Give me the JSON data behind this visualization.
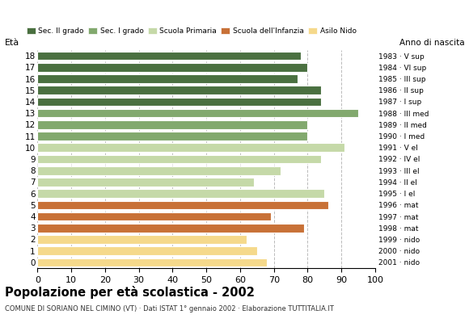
{
  "title": "Popolazione per età scolastica - 2002",
  "subtitle": "COMUNE DI SORIANO NEL CIMINO (VT) · Dati ISTAT 1° gennaio 2002 · Elaborazione TUTTITALIA.IT",
  "ylabel_left": "Età",
  "ylabel_right": "Anno di nascita",
  "ages": [
    0,
    1,
    2,
    3,
    4,
    5,
    6,
    7,
    8,
    9,
    10,
    11,
    12,
    13,
    14,
    15,
    16,
    17,
    18
  ],
  "values": [
    68,
    65,
    62,
    79,
    69,
    86,
    85,
    64,
    72,
    84,
    91,
    80,
    80,
    95,
    84,
    84,
    77,
    80,
    78
  ],
  "anni_nascita": [
    "2001 · nido",
    "2000 · nido",
    "1999 · nido",
    "1998 · mat",
    "1997 · mat",
    "1996 · mat",
    "1995 · I el",
    "1994 · II el",
    "1993 · III el",
    "1992 · IV el",
    "1991 · V el",
    "1990 · I med",
    "1989 · II med",
    "1988 · III med",
    "1987 · I sup",
    "1986 · II sup",
    "1985 · III sup",
    "1984 · VI sup",
    "1983 · V sup"
  ],
  "bar_colors_by_age": {
    "18": "#4a7040",
    "17": "#4a7040",
    "16": "#4a7040",
    "15": "#4a7040",
    "14": "#4a7040",
    "13": "#82a96e",
    "12": "#82a96e",
    "11": "#82a96e",
    "10": "#c5d9a8",
    "9": "#c5d9a8",
    "8": "#c5d9a8",
    "7": "#c5d9a8",
    "6": "#c5d9a8",
    "5": "#c87137",
    "4": "#c87137",
    "3": "#c87137",
    "2": "#f5d98b",
    "1": "#f5d98b",
    "0": "#f5d98b"
  },
  "xlim": [
    0,
    100
  ],
  "xticks": [
    0,
    10,
    20,
    30,
    40,
    50,
    60,
    70,
    80,
    90,
    100
  ],
  "grid_color": "#bbbbbb",
  "bg_color": "#ffffff",
  "bar_edge_color": "#ffffff",
  "legend_labels": [
    "Sec. II grado",
    "Sec. I grado",
    "Scuola Primaria",
    "Scuola dell'Infanzia",
    "Asilo Nido"
  ],
  "legend_colors": [
    "#4a7040",
    "#82a96e",
    "#c5d9a8",
    "#c87137",
    "#f5d98b"
  ]
}
